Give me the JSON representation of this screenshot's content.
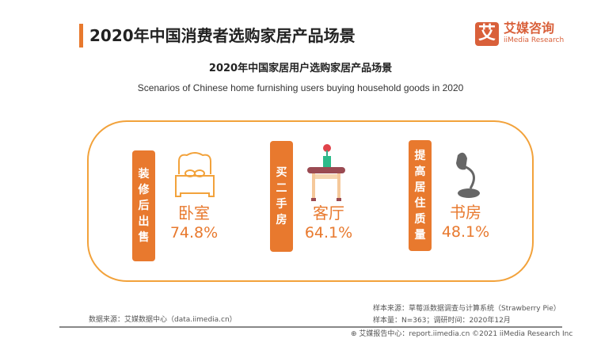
{
  "header": {
    "title": "2020年中国消费者选购家居产品场景",
    "logo_mark": "艾",
    "logo_cn": "艾媒咨询",
    "logo_en": "iiMedia Research"
  },
  "chart": {
    "title_cn": "2020年中国家居用户选购家居产品场景",
    "title_en": "Scenarios of Chinese home furnishing users buying household goods in 2020",
    "items": [
      {
        "scenario": [
          "装",
          "修",
          "后",
          "出",
          "售"
        ],
        "room": "卧室",
        "percent": "74.8%",
        "icon": "bed-icon"
      },
      {
        "scenario": [
          "买",
          "二",
          "手",
          "房"
        ],
        "room": "客厅",
        "percent": "64.1%",
        "icon": "side-table-icon"
      },
      {
        "scenario": [
          "提",
          "高",
          "居",
          "住",
          "质",
          "量"
        ],
        "room": "书房",
        "percent": "48.1%",
        "icon": "desk-lamp-icon"
      }
    ]
  },
  "footer": {
    "source": "数据来源：艾媒数据中心（data.iimedia.cn）",
    "sample_source": "样本来源：草莓派数据调查与计算系统（Strawberry Pie）",
    "sample_size": "样本量：N=363；调研时间：2020年12月",
    "report": "艾媒报告中心：report.iimedia.cn  ©2021  iiMedia Research  Inc"
  },
  "colors": {
    "accent": "#e8792e",
    "brand": "#d9603a",
    "frame": "#f2a23b"
  }
}
